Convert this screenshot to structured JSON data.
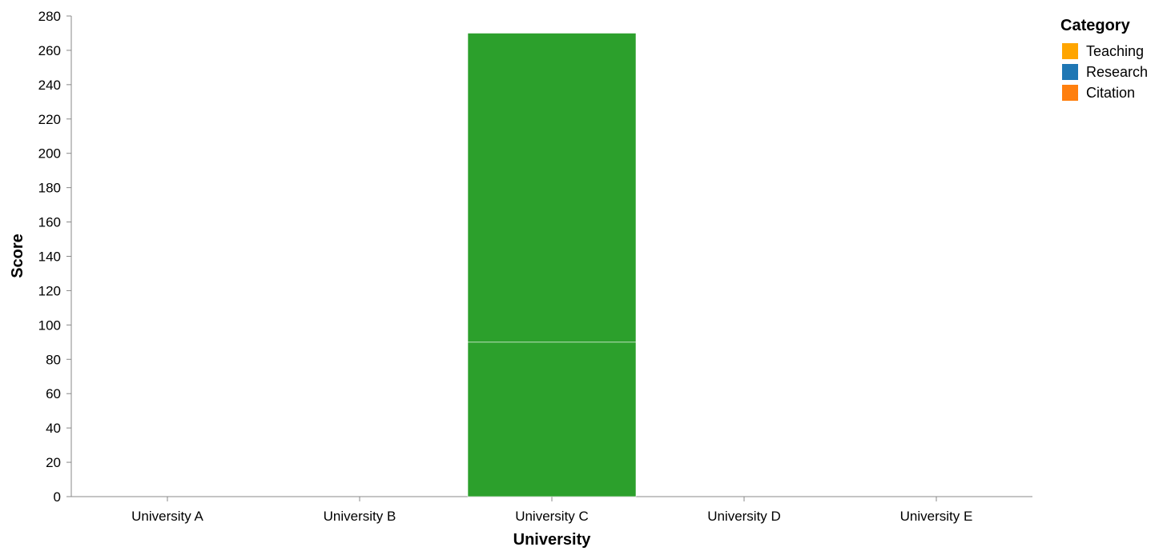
{
  "chart_data": {
    "type": "bar",
    "stacked": true,
    "categories": [
      "University A",
      "University B",
      "University C",
      "University D",
      "University E"
    ],
    "series": [
      {
        "name": "Teaching",
        "values": [
          0,
          0,
          0,
          0,
          0
        ]
      },
      {
        "name": "Research",
        "values": [
          0,
          0,
          0,
          0,
          0
        ]
      },
      {
        "name": "Citation",
        "values": [
          0,
          0,
          0,
          0,
          0
        ]
      }
    ],
    "unlabeled_segments": [
      {
        "category": "University C",
        "start": 0,
        "end": 90,
        "color": "#2ca02c"
      },
      {
        "category": "University C",
        "start": 90,
        "end": 270,
        "color": "#2ca02c"
      }
    ],
    "xlabel": "University",
    "ylabel": "Score",
    "ylim": [
      0,
      280
    ],
    "yticks": [
      0,
      20,
      40,
      60,
      80,
      100,
      120,
      140,
      160,
      180,
      200,
      220,
      240,
      260,
      280
    ],
    "grid": false,
    "legend": {
      "title": "Category",
      "placement": "top-right",
      "entries": [
        {
          "label": "Teaching",
          "color": "#ffa500"
        },
        {
          "label": "Research",
          "color": "#1f77b4"
        },
        {
          "label": "Citation",
          "color": "#ff7f0e"
        }
      ]
    }
  }
}
